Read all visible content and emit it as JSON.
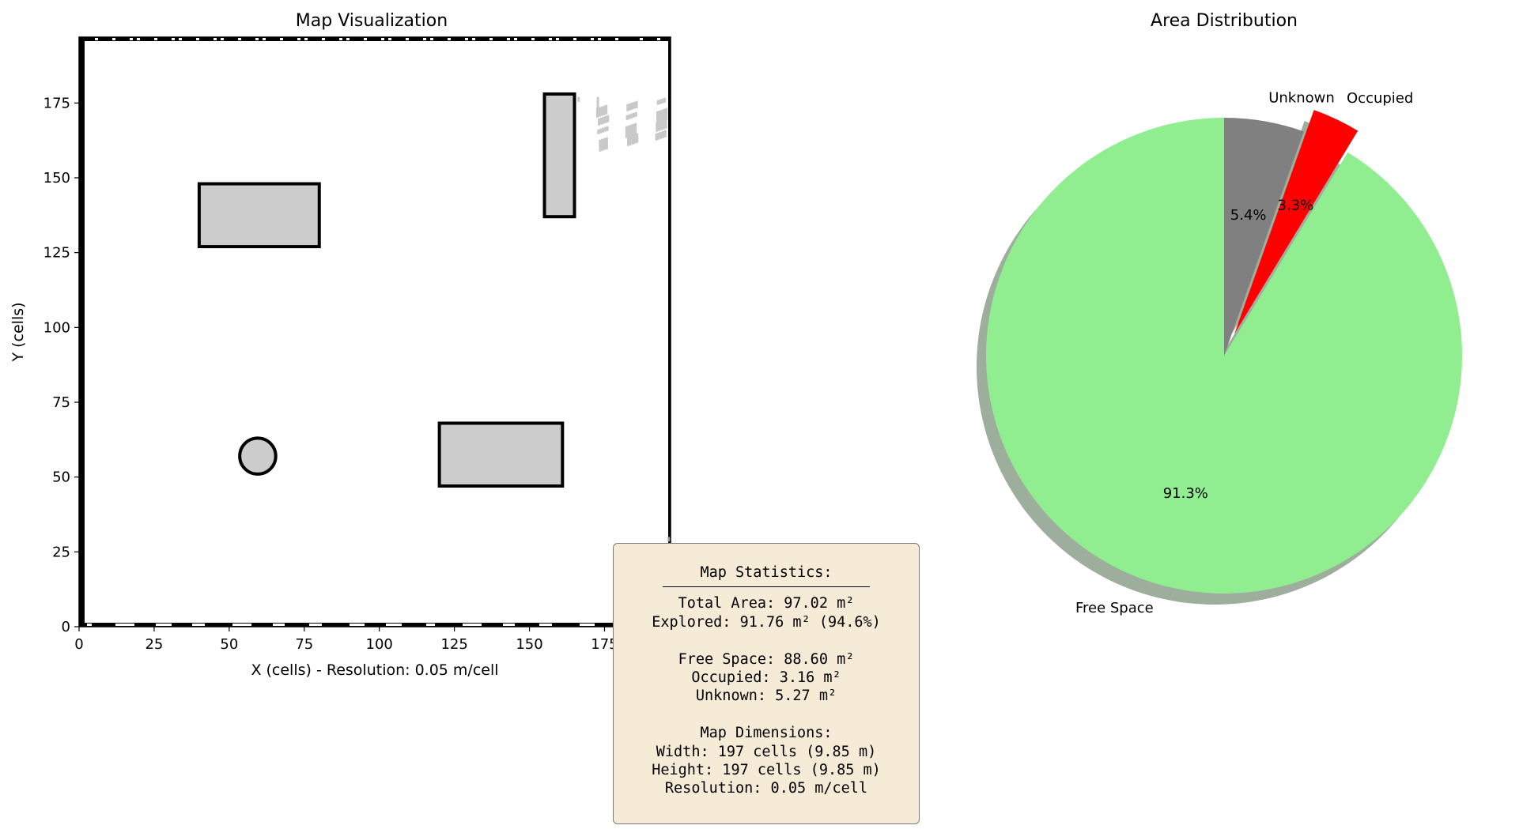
{
  "colors": {
    "free": "#90ee90",
    "occupied": "#ff0000",
    "unknown": "#808080",
    "obstacle_fill": "#cccccc",
    "obstacle_edge": "#000000",
    "stats_bg": "#f6ebd6"
  },
  "chart_data": [
    {
      "type": "heatmap",
      "title": "Map Visualization",
      "xlabel": "X (cells) - Resolution: 0.05 m/cell",
      "ylabel": "Y (cells)",
      "xlim": [
        0,
        197
      ],
      "ylim": [
        0,
        197
      ],
      "xticks": [
        0,
        25,
        50,
        75,
        100,
        125,
        150,
        175
      ],
      "yticks": [
        0,
        25,
        50,
        75,
        100,
        125,
        150,
        175
      ],
      "grid": true,
      "obstacles": [
        {
          "shape": "rect",
          "x0": 40,
          "x1": 80,
          "y0": 127,
          "y1": 148
        },
        {
          "shape": "rect",
          "x0": 155,
          "x1": 165,
          "y0": 137,
          "y1": 178
        },
        {
          "shape": "circle",
          "cx": 59.5,
          "cy": 57,
          "r": 6
        },
        {
          "shape": "rect",
          "x0": 120,
          "x1": 161,
          "y0": 47,
          "y1": 68
        }
      ]
    },
    {
      "type": "pie",
      "title": "Area Distribution",
      "labels": [
        "Free Space",
        "Occupied",
        "Unknown"
      ],
      "values": [
        88.6,
        3.16,
        5.27
      ],
      "percent_labels": [
        "91.3%",
        "3.3%",
        "5.4%"
      ],
      "shadow": true,
      "explode": [
        0,
        0.1,
        0
      ],
      "start_angle": 90
    }
  ],
  "stats": {
    "title": "Map Statistics:",
    "total_area": "Total Area: 97.02 m²",
    "explored": "Explored: 91.76 m² (94.6%)",
    "free": "Free Space: 88.60 m²",
    "occupied": "Occupied: 3.16 m²",
    "unknown": "Unknown: 5.27 m²",
    "dims_title": "Map Dimensions:",
    "width": "Width: 197 cells (9.85 m)",
    "height": "Height: 197 cells (9.85 m)",
    "resolution": "Resolution: 0.05 m/cell"
  }
}
